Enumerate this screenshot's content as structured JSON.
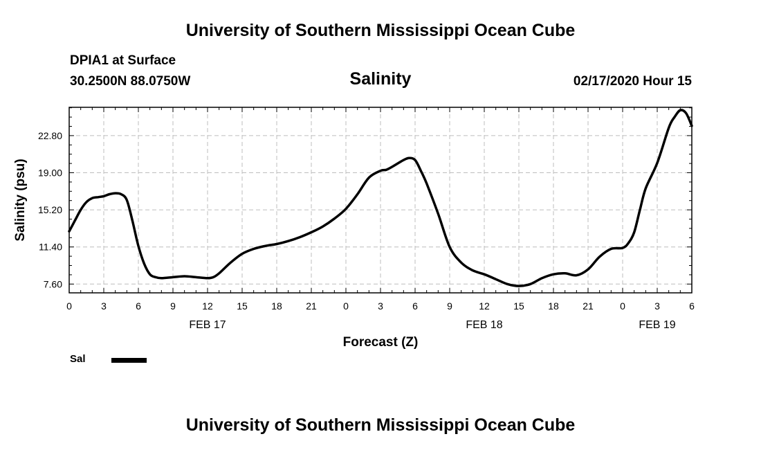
{
  "header": {
    "title_top": "University of Southern Mississippi Ocean Cube",
    "station": "DPIA1 at Surface",
    "coords": "30.2500N 88.0750W",
    "parameter": "Salinity",
    "datetime": "02/17/2020 Hour 15"
  },
  "footer": {
    "title_bottom": "University of Southern Mississippi Ocean Cube"
  },
  "legend": {
    "label": "Sal",
    "color": "#000000"
  },
  "chart_data": {
    "type": "line",
    "xlabel": "Forecast (Z)",
    "ylabel": "Salinity (psu)",
    "xlim": [
      0,
      54
    ],
    "ylim": [
      6.7,
      25.7
    ],
    "grid": true,
    "legend_position": "bottom-left",
    "x_ticks": [
      {
        "value": 0,
        "label": "0"
      },
      {
        "value": 3,
        "label": "3"
      },
      {
        "value": 6,
        "label": "6"
      },
      {
        "value": 9,
        "label": "9"
      },
      {
        "value": 12,
        "label": "12"
      },
      {
        "value": 15,
        "label": "15"
      },
      {
        "value": 18,
        "label": "18"
      },
      {
        "value": 21,
        "label": "21"
      },
      {
        "value": 24,
        "label": "0"
      },
      {
        "value": 27,
        "label": "3"
      },
      {
        "value": 30,
        "label": "6"
      },
      {
        "value": 33,
        "label": "9"
      },
      {
        "value": 36,
        "label": "12"
      },
      {
        "value": 39,
        "label": "15"
      },
      {
        "value": 42,
        "label": "18"
      },
      {
        "value": 45,
        "label": "21"
      },
      {
        "value": 48,
        "label": "0"
      },
      {
        "value": 51,
        "label": "3"
      },
      {
        "value": 54,
        "label": "6"
      }
    ],
    "date_labels": [
      {
        "value": 12,
        "label": "FEB 17"
      },
      {
        "value": 36,
        "label": "FEB 18"
      },
      {
        "value": 51,
        "label": "FEB 19"
      }
    ],
    "y_ticks": [
      7.6,
      11.4,
      15.2,
      19.0,
      22.8
    ],
    "y_tick_labels": [
      "7.60",
      "11.40",
      "15.20",
      "19.00",
      "22.80"
    ],
    "series": [
      {
        "name": "Sal",
        "x": [
          0,
          0.5,
          1,
          1.5,
          2,
          2.5,
          3,
          3.5,
          4,
          4.5,
          5,
          5.5,
          6,
          6.5,
          7,
          7.5,
          8,
          9,
          10,
          11,
          12,
          12.5,
          13,
          14,
          15,
          16,
          17,
          18,
          19,
          20,
          21,
          22,
          23,
          24,
          25,
          26,
          27,
          27.5,
          28,
          29,
          29.5,
          30,
          30.5,
          31,
          32,
          33,
          34,
          35,
          36,
          37,
          38,
          39,
          40,
          41,
          42,
          43,
          44,
          45,
          46,
          47,
          48,
          48.5,
          49,
          49.5,
          50,
          51,
          52,
          52.5,
          53,
          53.5,
          54
        ],
        "y": [
          13.0,
          14.1,
          15.2,
          16.0,
          16.4,
          16.5,
          16.6,
          16.8,
          16.9,
          16.8,
          16.2,
          14.0,
          11.5,
          9.7,
          8.6,
          8.3,
          8.2,
          8.3,
          8.4,
          8.3,
          8.2,
          8.3,
          8.7,
          9.8,
          10.7,
          11.2,
          11.5,
          11.7,
          12.0,
          12.4,
          12.9,
          13.5,
          14.3,
          15.3,
          16.8,
          18.5,
          19.2,
          19.3,
          19.6,
          20.3,
          20.5,
          20.3,
          19.2,
          17.9,
          14.8,
          11.4,
          9.8,
          9.0,
          8.6,
          8.1,
          7.6,
          7.4,
          7.6,
          8.2,
          8.6,
          8.7,
          8.5,
          9.1,
          10.4,
          11.2,
          11.3,
          11.8,
          12.9,
          15.2,
          17.4,
          20.0,
          23.6,
          24.7,
          25.4,
          25.1,
          23.8
        ]
      }
    ]
  }
}
